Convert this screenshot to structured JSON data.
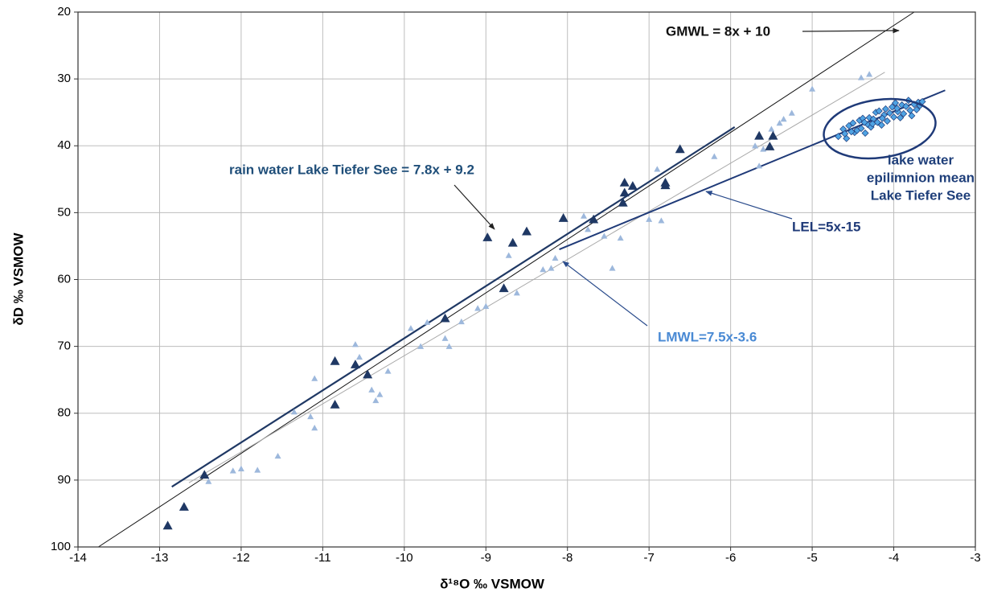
{
  "chart_data": {
    "type": "scatter",
    "x_label": "δ¹⁸O ‰ VSMOW",
    "y_label": "δD ‰ VSMOW",
    "xlim": [
      -14,
      -3
    ],
    "xticks": [
      -14,
      -13,
      -12,
      -11,
      -10,
      -9,
      -8,
      -7,
      -6,
      -5,
      -4,
      -3
    ],
    "ylim": [
      100,
      20
    ],
    "yticks": [
      20,
      30,
      40,
      50,
      60,
      70,
      80,
      90,
      100
    ],
    "grid": true,
    "series": [
      {
        "marker": "triangle",
        "color": "#9db8dc",
        "size": 4,
        "x": [
          -12.4,
          -12.1,
          -12.0,
          -11.8,
          -11.55,
          -11.35,
          -11.15,
          -11.1,
          -11.1,
          -10.6,
          -10.55,
          -10.4,
          -10.35,
          -10.3,
          -10.2,
          -9.92,
          -9.72,
          -9.8,
          -9.5,
          -9.45,
          -9.3,
          -9.1,
          -9.0,
          -8.72,
          -8.62,
          -8.3,
          -8.2,
          -8.15,
          -7.8,
          -7.75,
          -7.55,
          -7.45,
          -7.35,
          -7.0,
          -6.85,
          -6.9,
          -6.2,
          -5.7,
          -5.6,
          -5.65,
          -5.5,
          -5.4,
          -5.35,
          -5.25,
          -5.0,
          -4.4,
          -4.3
        ],
        "values": [
          90.2,
          88.6,
          88.3,
          88.5,
          86.4,
          79.8,
          80.5,
          82.2,
          74.8,
          69.7,
          71.6,
          76.5,
          78.1,
          77.2,
          73.7,
          67.3,
          66.4,
          70.0,
          68.8,
          70.0,
          66.3,
          64.3,
          64.0,
          56.4,
          62.0,
          58.5,
          58.3,
          56.8,
          50.5,
          52.5,
          53.5,
          58.3,
          53.8,
          51.0,
          51.2,
          43.5,
          41.6,
          40.0,
          40.5,
          43.0,
          37.5,
          36.6,
          36.0,
          35.1,
          31.5,
          29.8,
          29.3
        ]
      },
      {
        "marker": "triangle",
        "color": "#1f3864",
        "size": 6,
        "x": [
          -12.9,
          -12.7,
          -12.45,
          -10.85,
          -10.85,
          -10.6,
          -10.45,
          -9.5,
          -8.98,
          -8.78,
          -8.67,
          -8.5,
          -8.05,
          -7.68,
          -7.3,
          -7.3,
          -7.2,
          -7.32,
          -6.8,
          -6.8,
          -6.62,
          -5.65,
          -5.52,
          -5.48
        ],
        "values": [
          96.8,
          94.0,
          89.2,
          72.2,
          78.7,
          72.7,
          74.2,
          65.8,
          53.7,
          61.3,
          54.5,
          52.8,
          50.8,
          51.0,
          45.5,
          47.0,
          46.0,
          48.5,
          45.5,
          45.9,
          40.5,
          38.5,
          40.1,
          38.5
        ]
      },
      {
        "marker": "diamond",
        "color": "#4fa3e3",
        "size": 4,
        "x": [
          -4.68,
          -4.62,
          -4.58,
          -4.55,
          -4.5,
          -4.48,
          -4.45,
          -4.42,
          -4.4,
          -4.38,
          -4.35,
          -4.32,
          -4.3,
          -4.28,
          -4.25,
          -4.22,
          -4.2,
          -4.18,
          -4.15,
          -4.12,
          -4.1,
          -4.08,
          -4.05,
          -4.02,
          -4.0,
          -3.98,
          -3.95,
          -3.92,
          -3.9,
          -3.88,
          -3.85,
          -3.82,
          -3.8,
          -3.78,
          -3.75,
          -3.72,
          -3.7,
          -3.68,
          -3.65,
          -4.52,
          -4.36,
          -4.26,
          -4.14,
          -3.96,
          -4.6
        ],
        "values": [
          38.6,
          37.5,
          38.9,
          37.0,
          36.6,
          38.0,
          37.7,
          36.2,
          37.4,
          35.9,
          38.1,
          36.8,
          35.8,
          37.2,
          36.0,
          35.0,
          36.5,
          34.8,
          36.9,
          35.4,
          34.5,
          36.3,
          35.1,
          34.2,
          35.7,
          33.6,
          34.9,
          35.8,
          33.9,
          35.2,
          34.1,
          33.2,
          34.7,
          35.5,
          33.8,
          34.6,
          33.5,
          34.0,
          33.4,
          37.9,
          36.5,
          36.7,
          35.9,
          34.4,
          38.2
        ]
      }
    ],
    "lines": [
      {
        "color": "#111111",
        "width": 1,
        "x": [
          -13.75,
          -3.75
        ],
        "values": [
          100,
          20
        ]
      },
      {
        "color": "#aaaaaa",
        "width": 1,
        "x": [
          -12.64,
          -4.11
        ],
        "values": [
          90.4,
          29.0
        ]
      },
      {
        "color": "#1f3864",
        "width": 2.2,
        "x": [
          -12.85,
          -5.95
        ],
        "values": [
          91.0,
          37.2
        ]
      },
      {
        "color": "#1f3a78",
        "width": 2,
        "x": [
          -8.1,
          -3.37
        ],
        "values": [
          55.5,
          31.7
        ]
      }
    ],
    "annotations": [
      "GMWL = 8x + 10",
      "rain water Lake Tiefer See = 7.8x + 9.2",
      "lake water",
      "epilimnion mean",
      "Lake Tiefer See",
      "LEL=5x-15",
      "LMWL=7.5x-3.6"
    ]
  }
}
